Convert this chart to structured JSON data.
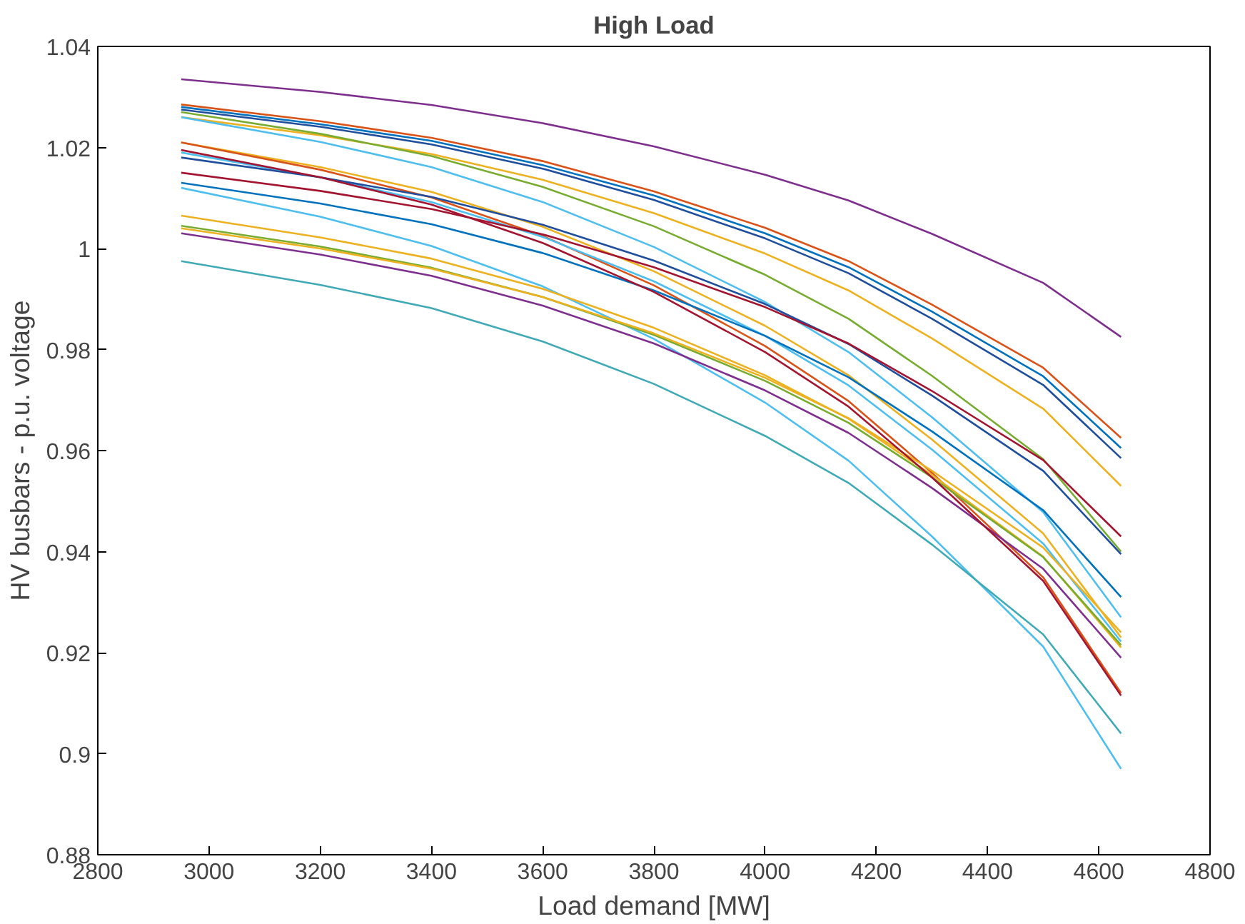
{
  "chart_data": {
    "type": "line",
    "title": "High Load",
    "xlabel": "Load demand [MW]",
    "ylabel": "HV busbars - p.u. voltage",
    "x": [
      2950,
      3200,
      3400,
      3600,
      3800,
      4000,
      4150,
      4300,
      4500,
      4640
    ],
    "xlim": [
      2800,
      4800
    ],
    "xticks": [
      2800,
      3000,
      3200,
      3400,
      3600,
      3800,
      4000,
      4200,
      4400,
      4600,
      4800
    ],
    "ylim": [
      0.88,
      1.04
    ],
    "yticks": [
      0.88,
      0.9,
      0.92,
      0.94,
      0.96,
      0.98,
      1,
      1.02,
      1.04
    ],
    "grid": false,
    "line_style": "solid",
    "marker": "none",
    "series": [
      {
        "color": "#7e2f8e",
        "values": [
          1.0335,
          1.031,
          1.0284,
          1.0248,
          1.0202,
          1.0146,
          1.0095,
          1.0029,
          0.9932,
          0.9825
        ]
      },
      {
        "color": "#d95319",
        "values": [
          1.0285,
          1.0252,
          1.0219,
          1.0173,
          1.0113,
          1.0041,
          0.9975,
          0.9889,
          0.9764,
          0.9625
        ]
      },
      {
        "color": "#0072bd",
        "values": [
          1.028,
          1.0246,
          1.0213,
          1.0165,
          1.0105,
          1.003,
          0.9963,
          0.9875,
          0.9747,
          0.9605
        ]
      },
      {
        "color": "#1f4e9c",
        "values": [
          1.0275,
          1.0241,
          1.0206,
          1.0158,
          1.0096,
          1.002,
          0.9951,
          0.9861,
          0.973,
          0.9585
        ]
      },
      {
        "color": "#edb120",
        "values": [
          1.026,
          1.0224,
          1.0187,
          1.0136,
          1.007,
          0.999,
          0.9917,
          0.9822,
          0.9683,
          0.953
        ]
      },
      {
        "color": "#77ac30",
        "values": [
          1.027,
          1.0227,
          1.0183,
          1.0122,
          1.0044,
          0.9948,
          0.9861,
          0.9748,
          0.9583,
          0.94
        ]
      },
      {
        "color": "#4dbeee",
        "values": [
          1.026,
          1.0211,
          1.0161,
          1.0092,
          1.0003,
          0.9894,
          0.9795,
          0.9666,
          0.9478,
          0.927
        ]
      },
      {
        "color": "#edb120",
        "values": [
          1.021,
          1.0161,
          1.0112,
          1.0043,
          0.9955,
          0.9847,
          0.9749,
          0.9622,
          0.9436,
          0.923
        ]
      },
      {
        "color": "#d95319",
        "values": [
          1.021,
          1.0156,
          1.0101,
          1.0025,
          0.9927,
          0.9807,
          0.9698,
          0.9556,
          0.9349,
          0.912
        ]
      },
      {
        "color": "#4dbeee",
        "values": [
          1.019,
          1.0141,
          1.0092,
          1.0023,
          0.9935,
          0.9827,
          0.9729,
          0.9602,
          0.9416,
          0.9222
        ]
      },
      {
        "color": "#1f4e9c",
        "values": [
          1.018,
          1.0141,
          1.0102,
          1.0047,
          0.9976,
          0.989,
          0.9811,
          0.9709,
          0.956,
          0.9395
        ]
      },
      {
        "color": "#a2142f",
        "values": [
          1.015,
          1.0114,
          1.0078,
          1.0028,
          0.9963,
          0.9884,
          0.9812,
          0.9718,
          0.9581,
          0.943
        ]
      },
      {
        "color": "#0072bd",
        "values": [
          1.013,
          1.0089,
          1.0048,
          0.9991,
          0.9917,
          0.9827,
          0.9745,
          0.9638,
          0.9482,
          0.931
        ]
      },
      {
        "color": "#4dbeee",
        "values": [
          1.012,
          1.0063,
          1.0005,
          0.9925,
          0.9821,
          0.9695,
          0.958,
          0.943,
          0.9212,
          0.897
        ]
      },
      {
        "color": "#edb120",
        "values": [
          1.0065,
          1.0022,
          0.998,
          0.992,
          0.9843,
          0.9749,
          0.9663,
          0.9552,
          0.939,
          0.921
        ]
      },
      {
        "color": "#77ac30",
        "values": [
          1.0045,
          1.0004,
          0.9962,
          0.9904,
          0.9829,
          0.9738,
          0.9655,
          0.9547,
          0.9389,
          0.9215
        ]
      },
      {
        "color": "#edb120",
        "values": [
          1.004,
          1.0,
          0.996,
          0.9904,
          0.9832,
          0.9744,
          0.9664,
          0.956,
          0.9408,
          0.924
        ]
      },
      {
        "color": "#7e2f8e",
        "values": [
          1.003,
          0.9988,
          0.9946,
          0.9887,
          0.9812,
          0.9719,
          0.9635,
          0.9526,
          0.9366,
          0.919
        ]
      },
      {
        "color": "#3fa9b5",
        "values": [
          0.9975,
          0.9928,
          0.9882,
          0.9816,
          0.9732,
          0.9629,
          0.9536,
          0.9414,
          0.9236,
          0.904
        ]
      },
      {
        "color": "#a2142f",
        "values": [
          1.0195,
          1.0141,
          1.0087,
          1.0011,
          0.9914,
          0.9795,
          0.9687,
          0.9547,
          0.9342,
          0.9115
        ]
      }
    ]
  }
}
